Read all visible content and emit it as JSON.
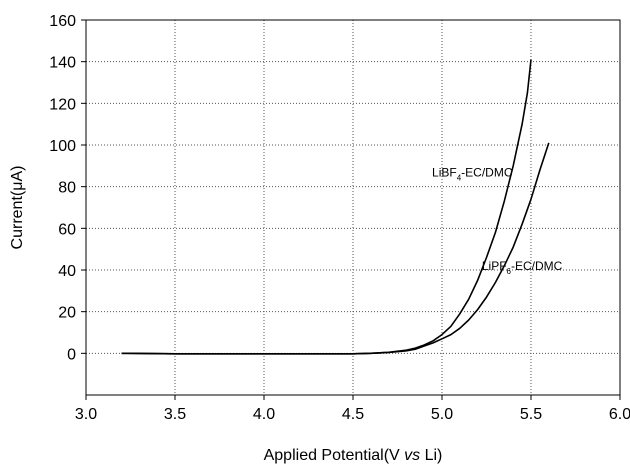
{
  "chart_data": {
    "type": "line",
    "title": "",
    "xlabel_parts": [
      "Applied Potential(V ",
      "vs",
      " Li)"
    ],
    "ylabel_parts": [
      "Current(",
      "μ",
      "A)"
    ],
    "xlim": [
      3.0,
      6.0
    ],
    "ylim": [
      -20,
      160
    ],
    "xticks": [
      3.0,
      3.5,
      4.0,
      4.5,
      5.0,
      5.5,
      6.0
    ],
    "yticks": [
      0,
      20,
      40,
      60,
      80,
      100,
      120,
      140,
      160
    ],
    "xtick_labels": [
      "3.0",
      "3.5",
      "4.0",
      "4.5",
      "5.0",
      "5.5",
      "6.0"
    ],
    "ytick_labels": [
      "0",
      "20",
      "40",
      "60",
      "80",
      "100",
      "120",
      "140",
      "160"
    ],
    "grid": true,
    "legend": "none",
    "series": [
      {
        "name_parts": [
          "LiBF",
          "4",
          "-EC/DMC"
        ],
        "color": "#000000",
        "label_at": [
          5.17,
          85
        ],
        "x": [
          3.2,
          3.5,
          4.0,
          4.5,
          4.6,
          4.7,
          4.8,
          4.85,
          4.9,
          4.95,
          5.0,
          5.05,
          5.1,
          5.15,
          5.2,
          5.25,
          5.3,
          5.35,
          5.4,
          5.45,
          5.48,
          5.5
        ],
        "y": [
          0,
          -0.2,
          -0.2,
          -0.2,
          0,
          0.5,
          1.5,
          2.5,
          4,
          6,
          9,
          13,
          19,
          26,
          35,
          46,
          58,
          73,
          90,
          110,
          125,
          141
        ]
      },
      {
        "name_parts": [
          "LiPF",
          "6",
          "-EC/DMC"
        ],
        "color": "#000000",
        "label_at": [
          5.45,
          40
        ],
        "x": [
          3.2,
          3.5,
          4.0,
          4.5,
          4.6,
          4.7,
          4.8,
          4.85,
          4.9,
          4.95,
          5.0,
          5.05,
          5.1,
          5.15,
          5.2,
          5.25,
          5.3,
          5.35,
          5.4,
          5.45,
          5.5,
          5.55,
          5.6
        ],
        "y": [
          0,
          -0.2,
          -0.2,
          -0.2,
          0,
          0.4,
          1.2,
          2,
          3.5,
          5,
          7,
          9,
          12,
          16,
          21,
          27,
          34,
          42,
          51,
          62,
          74,
          88,
          101
        ]
      }
    ]
  }
}
